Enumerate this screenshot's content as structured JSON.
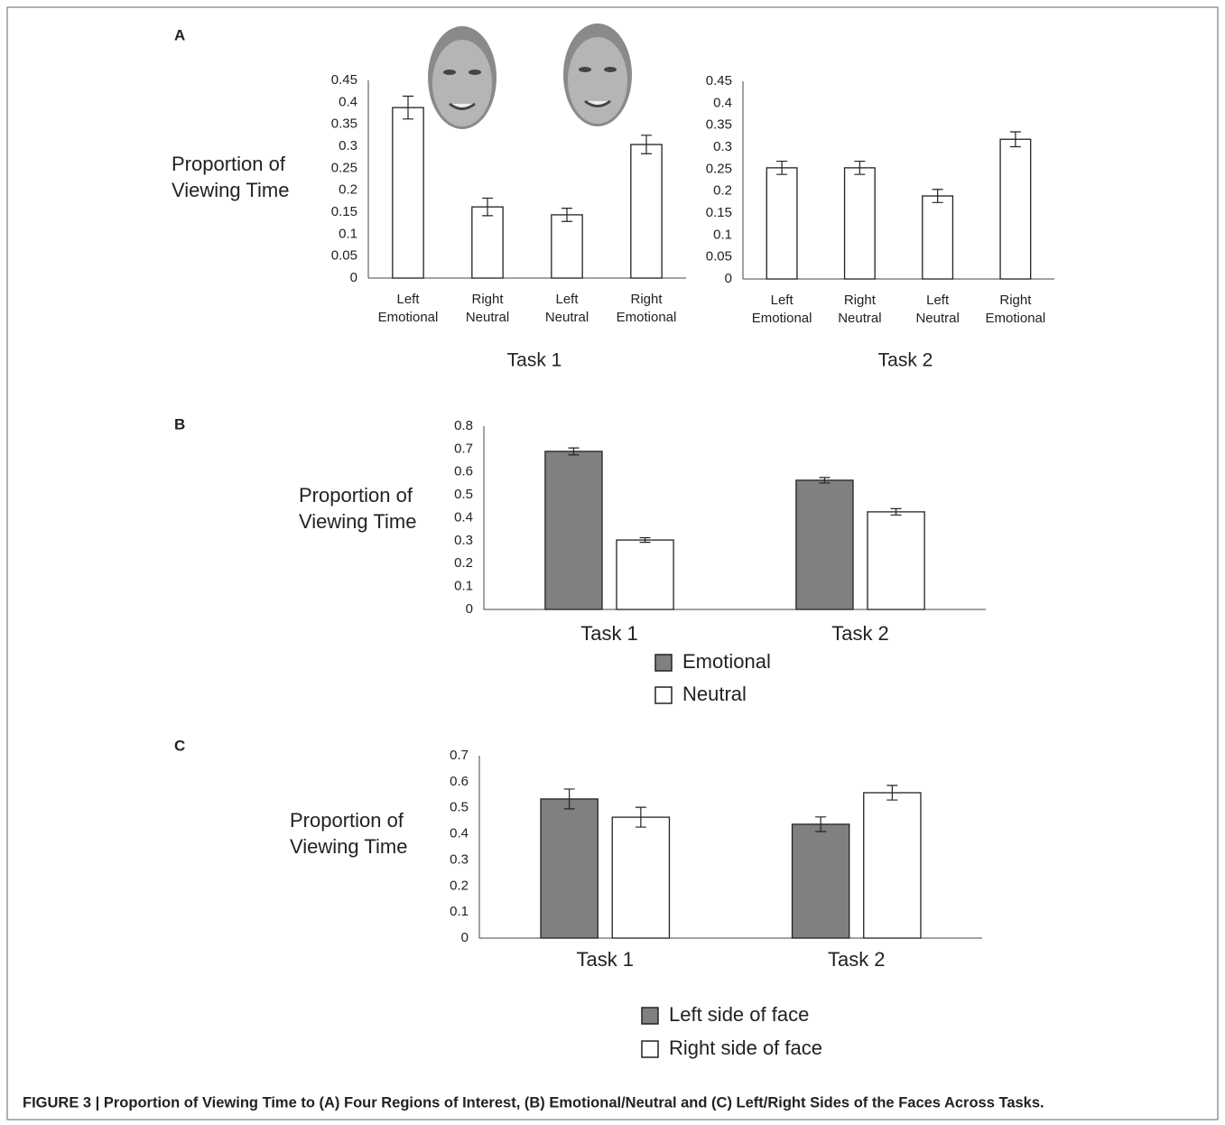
{
  "chart_data": [
    {
      "type": "bar",
      "panel": "A",
      "ylabel": [
        "Proportion of",
        "Viewing Time"
      ],
      "xlabel": "Task 1",
      "categories": [
        [
          "Left",
          "Emotional"
        ],
        [
          "Right",
          "Neutral"
        ],
        [
          "Left",
          "Neutral"
        ],
        [
          "Right",
          "Emotional"
        ]
      ],
      "values": [
        0.388,
        0.162,
        0.144,
        0.304
      ],
      "errors": [
        0.026,
        0.02,
        0.015,
        0.021
      ],
      "color": "#ffffff",
      "ylim": [
        0,
        0.45
      ],
      "yticks": [
        0,
        0.05,
        0.1,
        0.15,
        0.2,
        0.25,
        0.3,
        0.35,
        0.4,
        0.45
      ]
    },
    {
      "type": "bar",
      "xlabel": "Task 2",
      "categories": [
        [
          "Left",
          "Emotional"
        ],
        [
          "Right",
          "Neutral"
        ],
        [
          "Left",
          "Neutral"
        ],
        [
          "Right",
          "Emotional"
        ]
      ],
      "values": [
        0.253,
        0.253,
        0.189,
        0.318
      ],
      "errors": [
        0.015,
        0.015,
        0.015,
        0.017
      ],
      "color": "#ffffff",
      "ylim": [
        0,
        0.45
      ],
      "yticks": [
        0,
        0.05,
        0.1,
        0.15,
        0.2,
        0.25,
        0.3,
        0.35,
        0.4,
        0.45
      ]
    },
    {
      "type": "bar",
      "panel": "B",
      "ylabel": [
        "Proportion of",
        "Viewing Time"
      ],
      "categories": [
        "Task 1",
        "Task 2"
      ],
      "series": [
        {
          "name": "Emotional",
          "color": "#808080",
          "values": [
            0.69,
            0.564
          ],
          "errors": [
            0.015,
            0.012
          ]
        },
        {
          "name": "Neutral",
          "color": "#ffffff",
          "values": [
            0.303,
            0.426
          ],
          "errors": [
            0.01,
            0.014
          ]
        }
      ],
      "legend": "bottom",
      "ylim": [
        0,
        0.8
      ],
      "yticks": [
        0,
        0.1,
        0.2,
        0.3,
        0.4,
        0.5,
        0.6,
        0.7,
        0.8
      ]
    },
    {
      "type": "bar",
      "panel": "C",
      "ylabel": [
        "Proportion of",
        "Viewing Time"
      ],
      "categories": [
        "Task 1",
        "Task 2"
      ],
      "series": [
        {
          "name": "Left side of face",
          "color": "#808080",
          "values": [
            0.534,
            0.437
          ],
          "errors": [
            0.038,
            0.028
          ]
        },
        {
          "name": "Right side of face",
          "color": "#ffffff",
          "values": [
            0.464,
            0.558
          ],
          "errors": [
            0.038,
            0.028
          ]
        }
      ],
      "legend": "bottom",
      "ylim": [
        0,
        0.7
      ],
      "yticks": [
        0,
        0.1,
        0.2,
        0.3,
        0.4,
        0.5,
        0.6,
        0.7
      ]
    }
  ],
  "caption": "FIGURE 3 | Proportion of Viewing Time to (A) Four Regions of Interest, (B) Emotional/Neutral and (C) Left/Right Sides of the Faces Across Tasks."
}
